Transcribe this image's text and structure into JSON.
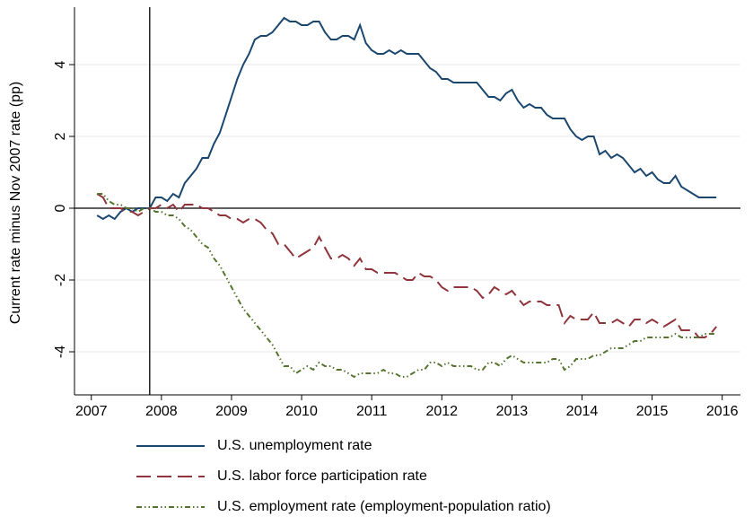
{
  "chart_data": {
    "type": "line",
    "y_label": "Current rate minus Nov 2007 rate (pp)",
    "x": [
      2007.083,
      2007.167,
      2007.25,
      2007.333,
      2007.417,
      2007.5,
      2007.583,
      2007.667,
      2007.75,
      2007.833,
      2007.917,
      2008,
      2008.083,
      2008.167,
      2008.25,
      2008.333,
      2008.417,
      2008.5,
      2008.583,
      2008.667,
      2008.75,
      2008.833,
      2008.917,
      2009,
      2009.083,
      2009.167,
      2009.25,
      2009.333,
      2009.417,
      2009.5,
      2009.583,
      2009.667,
      2009.75,
      2009.833,
      2009.917,
      2010,
      2010.083,
      2010.167,
      2010.25,
      2010.333,
      2010.417,
      2010.5,
      2010.583,
      2010.667,
      2010.75,
      2010.833,
      2010.917,
      2011,
      2011.083,
      2011.167,
      2011.25,
      2011.333,
      2011.417,
      2011.5,
      2011.583,
      2011.667,
      2011.75,
      2011.833,
      2011.917,
      2012,
      2012.083,
      2012.167,
      2012.25,
      2012.333,
      2012.417,
      2012.5,
      2012.583,
      2012.667,
      2012.75,
      2012.833,
      2012.917,
      2013,
      2013.083,
      2013.167,
      2013.25,
      2013.333,
      2013.417,
      2013.5,
      2013.583,
      2013.667,
      2013.75,
      2013.833,
      2013.917,
      2014,
      2014.083,
      2014.167,
      2014.25,
      2014.333,
      2014.417,
      2014.5,
      2014.583,
      2014.667,
      2014.75,
      2014.833,
      2014.917,
      2015,
      2015.083,
      2015.167,
      2015.25,
      2015.333,
      2015.417,
      2015.5,
      2015.583,
      2015.667,
      2015.75,
      2015.833,
      2015.917
    ],
    "series": [
      {
        "name": "U.S. unemployment rate",
        "color": "#1a476f",
        "style": "solid",
        "values": [
          -0.2,
          -0.3,
          -0.2,
          -0.3,
          -0.1,
          0.0,
          -0.1,
          0.0,
          0.0,
          0.0,
          0.3,
          0.3,
          0.2,
          0.4,
          0.3,
          0.7,
          0.9,
          1.1,
          1.4,
          1.4,
          1.8,
          2.1,
          2.6,
          3.1,
          3.6,
          4.0,
          4.3,
          4.7,
          4.8,
          4.8,
          4.9,
          5.1,
          5.3,
          5.2,
          5.2,
          5.1,
          5.1,
          5.2,
          5.2,
          4.9,
          4.7,
          4.7,
          4.8,
          4.8,
          4.7,
          5.1,
          4.6,
          4.4,
          4.3,
          4.3,
          4.4,
          4.3,
          4.4,
          4.3,
          4.3,
          4.3,
          4.1,
          3.9,
          3.8,
          3.6,
          3.6,
          3.5,
          3.5,
          3.5,
          3.5,
          3.5,
          3.3,
          3.1,
          3.1,
          3.0,
          3.2,
          3.3,
          3.0,
          2.8,
          2.9,
          2.8,
          2.8,
          2.6,
          2.5,
          2.5,
          2.5,
          2.2,
          2.0,
          1.9,
          2.0,
          2.0,
          1.5,
          1.6,
          1.4,
          1.5,
          1.4,
          1.2,
          1.0,
          1.1,
          0.9,
          1.0,
          0.8,
          0.7,
          0.7,
          0.9,
          0.6,
          0.5,
          0.4,
          0.3,
          0.3,
          0.3,
          0.3
        ]
      },
      {
        "name": "U.S. labor force participation rate",
        "color": "#90353b",
        "style": "dash",
        "values": [
          0.4,
          0.3,
          0.0,
          0.0,
          0.0,
          -0.1,
          -0.1,
          -0.2,
          -0.1,
          0.0,
          0.0,
          0.1,
          0.0,
          0.1,
          -0.1,
          0.1,
          0.1,
          0.1,
          0.0,
          0.0,
          -0.1,
          -0.2,
          -0.2,
          -0.3,
          -0.3,
          -0.4,
          -0.3,
          -0.3,
          -0.4,
          -0.6,
          -0.7,
          -1.0,
          -1.0,
          -1.2,
          -1.4,
          -1.3,
          -1.2,
          -1.1,
          -0.8,
          -1.1,
          -1.4,
          -1.4,
          -1.3,
          -1.4,
          -1.6,
          -1.4,
          -1.7,
          -1.7,
          -1.8,
          -1.8,
          -1.8,
          -1.8,
          -1.9,
          -2.0,
          -2.0,
          -1.8,
          -1.9,
          -1.9,
          -2.0,
          -2.2,
          -2.3,
          -2.2,
          -2.2,
          -2.2,
          -2.2,
          -2.3,
          -2.5,
          -2.4,
          -2.2,
          -2.3,
          -2.4,
          -2.3,
          -2.5,
          -2.7,
          -2.6,
          -2.6,
          -2.6,
          -2.7,
          -2.7,
          -2.7,
          -3.2,
          -3.0,
          -3.1,
          -3.1,
          -3.1,
          -2.9,
          -3.2,
          -3.2,
          -3.2,
          -3.1,
          -3.2,
          -3.3,
          -3.1,
          -3.1,
          -3.2,
          -3.1,
          -3.2,
          -3.3,
          -3.2,
          -3.1,
          -3.4,
          -3.4,
          -3.4,
          -3.6,
          -3.6,
          -3.5,
          -3.3
        ]
      },
      {
        "name": "U.S. employment rate (employment-population ratio)",
        "color": "#55752f",
        "style": "dashdot",
        "values": [
          0.4,
          0.4,
          0.2,
          0.1,
          0.1,
          0.0,
          0.0,
          -0.1,
          0.0,
          0.0,
          -0.1,
          -0.1,
          -0.2,
          -0.2,
          -0.3,
          -0.5,
          -0.6,
          -0.8,
          -1.0,
          -1.1,
          -1.4,
          -1.6,
          -1.9,
          -2.2,
          -2.5,
          -2.8,
          -3.0,
          -3.2,
          -3.4,
          -3.6,
          -3.8,
          -4.1,
          -4.4,
          -4.4,
          -4.6,
          -4.5,
          -4.4,
          -4.5,
          -4.3,
          -4.4,
          -4.4,
          -4.5,
          -4.5,
          -4.6,
          -4.7,
          -4.6,
          -4.6,
          -4.6,
          -4.6,
          -4.5,
          -4.6,
          -4.6,
          -4.7,
          -4.7,
          -4.6,
          -4.5,
          -4.5,
          -4.3,
          -4.3,
          -4.4,
          -4.3,
          -4.4,
          -4.4,
          -4.4,
          -4.4,
          -4.5,
          -4.5,
          -4.3,
          -4.3,
          -4.4,
          -4.2,
          -4.1,
          -4.2,
          -4.3,
          -4.3,
          -4.3,
          -4.3,
          -4.3,
          -4.2,
          -4.2,
          -4.5,
          -4.4,
          -4.2,
          -4.2,
          -4.2,
          -4.1,
          -4.1,
          -4.0,
          -3.9,
          -3.9,
          -3.9,
          -3.8,
          -3.7,
          -3.7,
          -3.6,
          -3.6,
          -3.6,
          -3.6,
          -3.6,
          -3.5,
          -3.6,
          -3.6,
          -3.6,
          -3.6,
          -3.5,
          -3.5,
          -3.5
        ]
      }
    ],
    "xlim": [
      2006.76,
      2016.26
    ],
    "xticks": [
      2007,
      2008,
      2009,
      2010,
      2011,
      2012,
      2013,
      2014,
      2015,
      2016
    ],
    "ylim": [
      -5.2,
      5.6
    ],
    "yticks": [
      -4,
      -2,
      0,
      2,
      4
    ],
    "vline": 2007.833,
    "hline": 0,
    "grid": true,
    "legend": "bottom"
  }
}
